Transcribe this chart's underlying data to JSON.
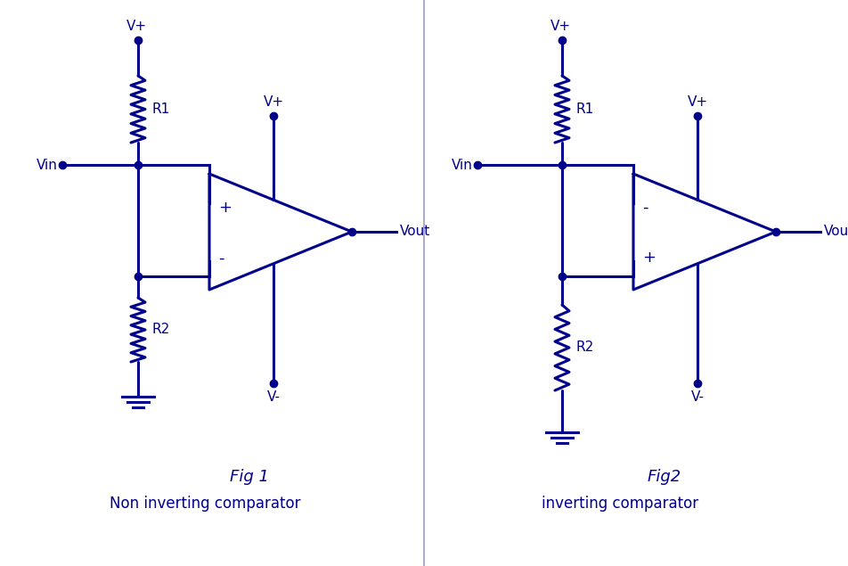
{
  "color": "#00008B",
  "bg_color": "#ffffff",
  "lw": 2.2,
  "dot_size": 6,
  "fig1_label": "Fig 1",
  "fig1_sublabel": "Non inverting comparator",
  "fig2_label": "Fig2",
  "fig2_sublabel": "inverting comparator",
  "font_size_label": 13,
  "font_size_sublabel": 12,
  "font_size_node": 11,
  "divider_color": "#9999cc"
}
